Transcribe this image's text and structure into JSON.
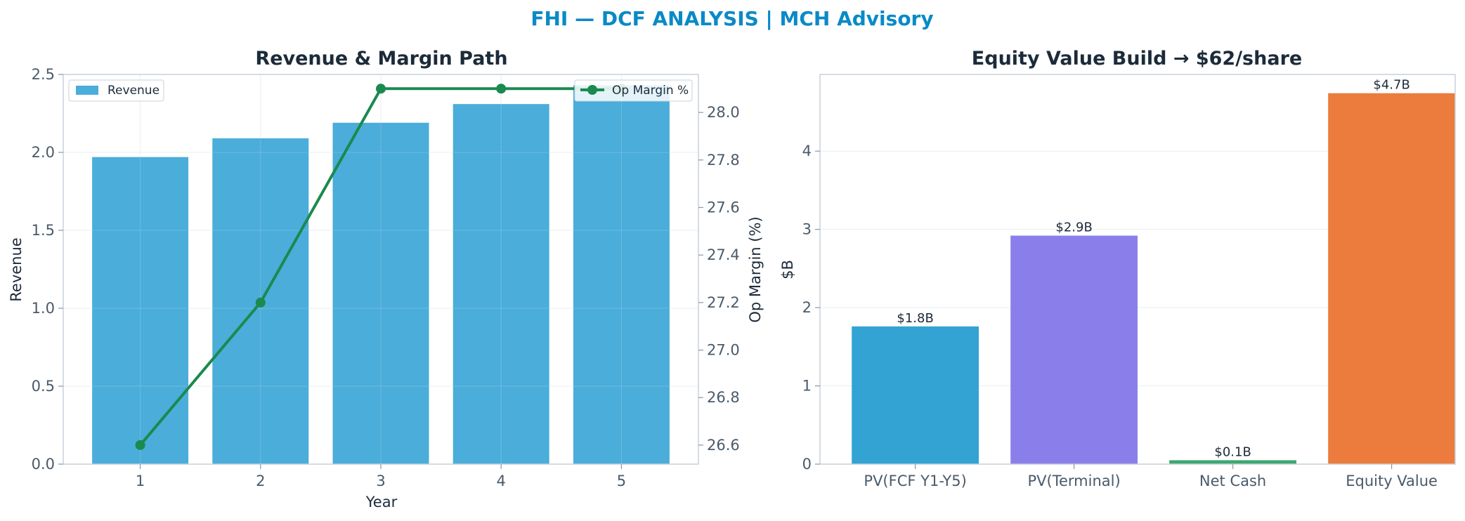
{
  "suptitle": "FHI — DCF ANALYSIS | MCH Advisory",
  "colors": {
    "suptitle": "#0a8ac6",
    "revenue_bar": "#4badd9",
    "op_margin_line": "#1a8a4f",
    "equity_bars": [
      "#33a3d4",
      "#8a7fea",
      "#3da870",
      "#ec7c3e"
    ]
  },
  "chart_data": [
    {
      "type": "bar",
      "title": "Revenue & Margin Path",
      "xlabel": "Year",
      "ylabel": "Revenue",
      "y2label": "Op Margin (%)",
      "categories": [
        "1",
        "2",
        "3",
        "4",
        "5"
      ],
      "ylim": [
        0,
        2.5
      ],
      "y2lim": [
        26.52,
        28.16
      ],
      "yticks": [
        "0.0",
        "0.5",
        "1.0",
        "1.5",
        "2.0",
        "2.5"
      ],
      "y2ticks": [
        "26.6",
        "26.8",
        "27.0",
        "27.2",
        "27.4",
        "27.6",
        "27.8",
        "28.0"
      ],
      "grid": true,
      "series": [
        {
          "name": "Revenue",
          "type": "bar",
          "axis": "left",
          "values": [
            1.97,
            2.09,
            2.19,
            2.31,
            2.43
          ]
        },
        {
          "name": "Op Margin %",
          "type": "line",
          "axis": "right",
          "values": [
            26.6,
            27.2,
            28.1,
            28.1,
            28.1
          ]
        }
      ],
      "legend": [
        {
          "label": "Revenue",
          "placement": "top-left"
        },
        {
          "label": "Op Margin %",
          "placement": "top-right"
        }
      ]
    },
    {
      "type": "bar",
      "title": "Equity Value Build → $62/share",
      "xlabel": "",
      "ylabel": "$B",
      "categories": [
        "PV(FCF Y1-Y5)",
        "PV(Terminal)",
        "Net Cash",
        "Equity Value"
      ],
      "values": [
        1.76,
        2.92,
        0.05,
        4.74
      ],
      "data_labels": [
        "$1.8B",
        "$2.9B",
        "$0.1B",
        "$4.7B"
      ],
      "ylim": [
        0,
        4.98
      ],
      "yticks": [
        "0",
        "1",
        "2",
        "3",
        "4"
      ],
      "grid": true
    }
  ]
}
